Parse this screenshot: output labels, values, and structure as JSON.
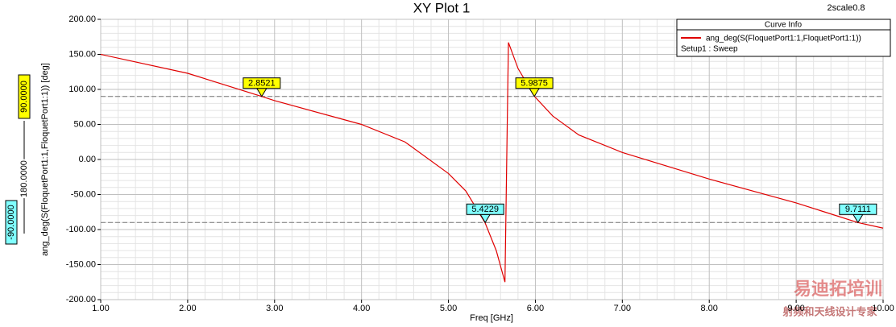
{
  "chart_data": {
    "type": "line",
    "title": "XY Plot 1",
    "corner_note": "2scale0.8",
    "x_label": "Freq [GHz]",
    "y_label": "ang_deg(S(FloquetPort1:1,FloquetPort1:1)) [deg]",
    "legend_title": "Curve Info",
    "legend_note": "Setup1 : Sweep",
    "xlim": [
      1,
      10
    ],
    "ylim": [
      -200,
      200
    ],
    "xticks": [
      {
        "value": 1,
        "label": "1.00"
      },
      {
        "value": 2,
        "label": "2.00"
      },
      {
        "value": 3,
        "label": "3.00"
      },
      {
        "value": 4,
        "label": "4.00"
      },
      {
        "value": 5,
        "label": "5.00"
      },
      {
        "value": 6,
        "label": "6.00"
      },
      {
        "value": 7,
        "label": "7.00"
      },
      {
        "value": 8,
        "label": "8.00"
      },
      {
        "value": 9,
        "label": "9.00"
      },
      {
        "value": 10,
        "label": "10.00"
      }
    ],
    "yticks": [
      {
        "value": -200,
        "label": "-200.00"
      },
      {
        "value": -150,
        "label": "-150.00"
      },
      {
        "value": -100,
        "label": "-100.00"
      },
      {
        "value": -50,
        "label": "-50.00"
      },
      {
        "value": 0,
        "label": "0.00"
      },
      {
        "value": 50,
        "label": "50.00"
      },
      {
        "value": 100,
        "label": "100.00"
      },
      {
        "value": 150,
        "label": "150.00"
      },
      {
        "value": 200,
        "label": "200.00"
      }
    ],
    "grid": true,
    "minor_grid": true,
    "series": [
      {
        "name": "ang_deg(S(FloquetPort1:1,FloquetPort1:1))",
        "color": "#e00000",
        "x": [
          1.0,
          2.0,
          2.85,
          3.0,
          4.0,
          4.5,
          5.0,
          5.2,
          5.42,
          5.55,
          5.65,
          5.69,
          5.8,
          5.99,
          6.2,
          6.5,
          7.0,
          8.0,
          9.0,
          9.71,
          10.0
        ],
        "values": [
          150,
          123,
          90,
          84,
          50,
          25,
          -20,
          -45,
          -90,
          -130,
          -175,
          167,
          130,
          90,
          62,
          35,
          10,
          -28,
          -62,
          -90,
          -98
        ]
      }
    ],
    "markers": [
      {
        "x": 2.8521,
        "label": "2.8521",
        "y": 90,
        "color": "#ffff00"
      },
      {
        "x": 5.4229,
        "label": "5.4229",
        "y": -90,
        "color": "#80ffff"
      },
      {
        "x": 5.9875,
        "label": "5.9875",
        "y": 90,
        "color": "#ffff00"
      },
      {
        "x": 9.7111,
        "label": "9.7111",
        "y": -90,
        "color": "#80ffff"
      }
    ],
    "hlines": [
      {
        "value": 90,
        "label": "90.0000",
        "color": "#ffff00"
      },
      {
        "value": -90,
        "label": "-90.0000",
        "color": "#80ffff"
      }
    ],
    "delta_label": "180.0000",
    "watermark": [
      "易迪拓培训",
      "射频和天线设计专家"
    ]
  }
}
